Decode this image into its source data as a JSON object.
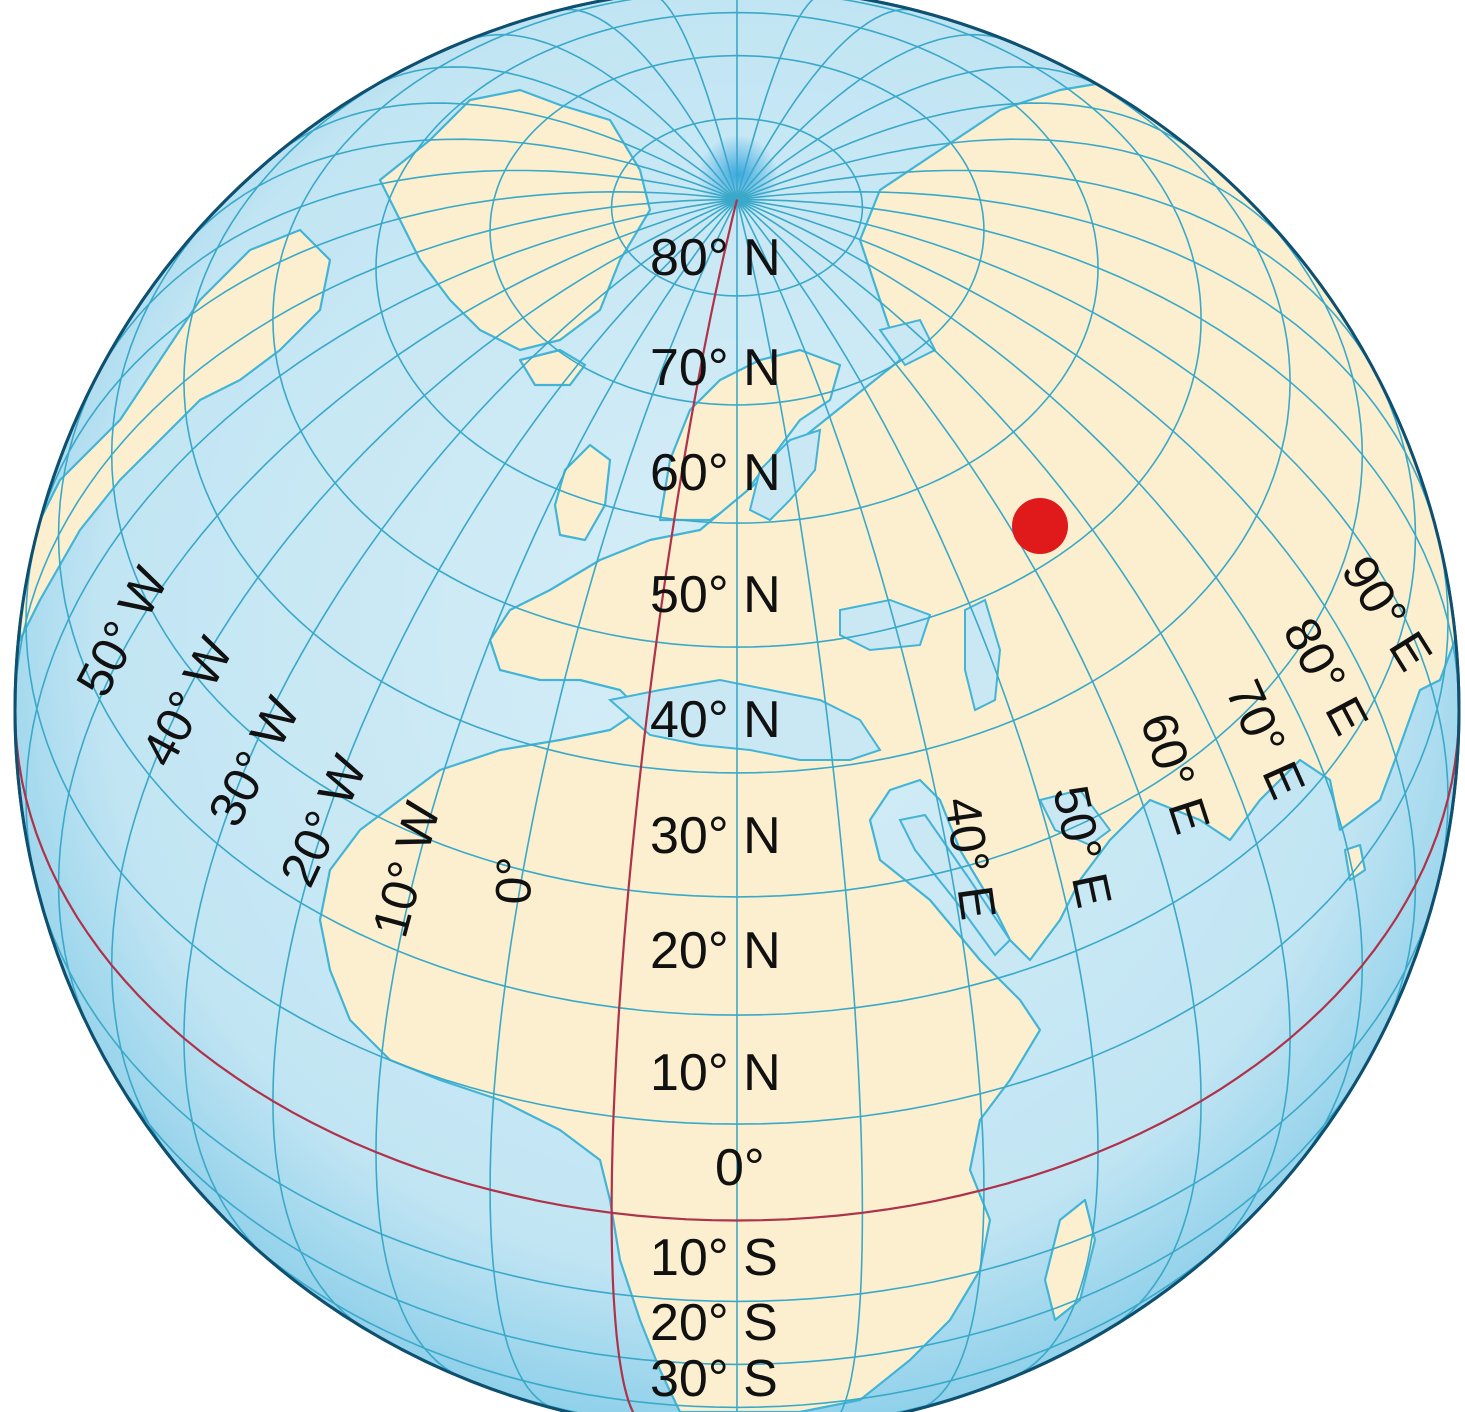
{
  "map": {
    "projection": "orthographic",
    "colors": {
      "ocean": "#c9e8f4",
      "ocean_edge": "#7ec9e6",
      "land": "#fbefcf",
      "graticule": "#3aa9c9",
      "coast": "#42b4d8",
      "highlight_lines": "#b0324a",
      "marker": "#e01a1a",
      "label": "#111111"
    },
    "latitude_labels": [
      "80° N",
      "70° N",
      "60° N",
      "50° N",
      "40° N",
      "30° N",
      "20° N",
      "10° N",
      "0°",
      "10° S",
      "20° S",
      "30° S"
    ],
    "west_labels": [
      "50° W",
      "40° W",
      "30° W",
      "20° W",
      "10° W"
    ],
    "prime_meridian_label": "0°",
    "east_labels": [
      "40° E",
      "50° E",
      "60° E",
      "70° E",
      "80° E",
      "90° E"
    ],
    "highlighted_lines": [
      "equator",
      "prime meridian"
    ],
    "marker": {
      "color": "#e01a1a",
      "shape": "circle"
    }
  }
}
